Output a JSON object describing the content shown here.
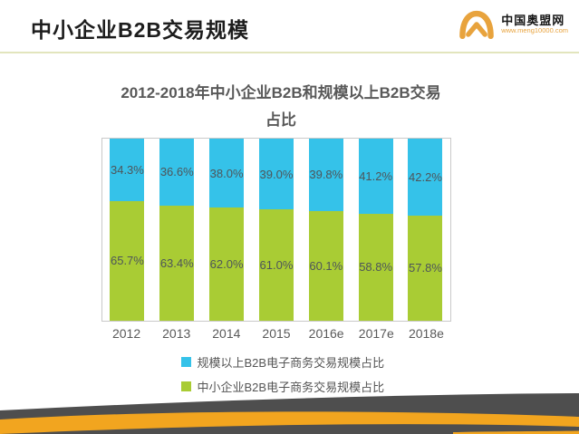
{
  "header": {
    "title": "中小企业B2B交易规模",
    "logo": {
      "name": "中国奥盟网",
      "url": "www.meng10000.com",
      "accent_color": "#e8a33d"
    }
  },
  "chart_data": {
    "type": "bar",
    "subtype": "stacked-percent",
    "title": "2012-2018年中小企业B2B和规模以上B2B交易占比",
    "title_line1": "2012-2018年中小企业B2B和规模以上B2B交易",
    "title_line2": "占比",
    "categories": [
      "2012",
      "2013",
      "2014",
      "2015",
      "2016e",
      "2017e",
      "2018e"
    ],
    "series": [
      {
        "name": "规模以上B2B电子商务交易规模占比",
        "color": "#35c2e9",
        "values": [
          34.3,
          36.6,
          38.0,
          39.0,
          39.8,
          41.2,
          42.2
        ]
      },
      {
        "name": "中小企业B2B电子商务交易规模占比",
        "color": "#a9cc34",
        "values": [
          65.7,
          63.4,
          62.0,
          61.0,
          60.1,
          58.8,
          57.8
        ]
      }
    ],
    "value_suffix": "%",
    "ylim": [
      0,
      100
    ],
    "grid": false,
    "legend_position": "bottom",
    "plot_border_color": "#c9c9c9"
  },
  "footer": {
    "dark_color": "#4e4e4e",
    "orange_color": "#f2a51f"
  }
}
